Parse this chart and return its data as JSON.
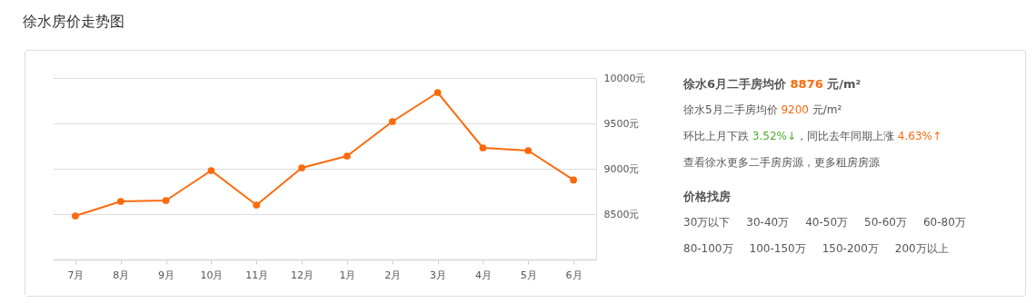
{
  "chart_data": [
    {
      "type": "line",
      "title": "徐水房价走势图",
      "categories": [
        "7月",
        "8月",
        "9月",
        "10月",
        "11月",
        "12月",
        "1月",
        "2月",
        "3月",
        "4月",
        "5月",
        "6月"
      ],
      "series": [
        {
          "color": "#fb6a0c",
          "values": [
            8480,
            8640,
            8650,
            8980,
            8600,
            9010,
            9140,
            9520,
            9840,
            9230,
            9200,
            8876
          ]
        }
      ],
      "ylim": [
        8000,
        10000
      ],
      "yticks": [
        {
          "value": 8500,
          "label": "8500元"
        },
        {
          "value": 9000,
          "label": "9000元"
        },
        {
          "value": 9500,
          "label": "9500元"
        },
        {
          "value": 10000,
          "label": "10000元"
        }
      ],
      "grid": "y",
      "marker": "circle",
      "line_style": "solid"
    },
    {
      "type": "other",
      "title": "徐水6月二手房均价 8876 元/m²",
      "subtitle": "价格找房",
      "annotations": [
        "徐水5月二手房均价 9200 元/m²",
        "环比上月下跌 3.52%↓，同比去年同期上涨 4.63%↑",
        "查看徐水更多二手房房源，更多租房房源",
        "30万以下",
        "30-40万",
        "40-50万",
        "50-60万",
        "60-80万",
        "80-100万",
        "100-150万",
        "150-200万",
        "200万以上"
      ]
    }
  ]
}
